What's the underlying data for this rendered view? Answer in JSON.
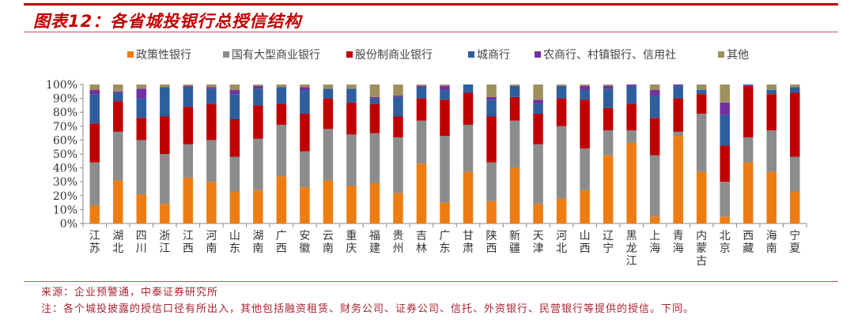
{
  "title": "图表12：各省城投银行总授信结构",
  "footer": {
    "source": "来源：企业预警通，中泰证券研究所",
    "note": "注：各个城投披露的授信口径有所出入，其他包括融资租赁、财务公司、证券公司、信托、外资银行、民营银行等提供的授信。下同。"
  },
  "chart_data": {
    "type": "bar",
    "stacked": true,
    "percent": true,
    "ylim": [
      0,
      100
    ],
    "yticks": [
      "0%",
      "10%",
      "20%",
      "30%",
      "40%",
      "50%",
      "60%",
      "70%",
      "80%",
      "90%",
      "100%"
    ],
    "legend_position": "top",
    "grid": false,
    "categories": [
      "江苏",
      "湖北",
      "四川",
      "浙江",
      "江西",
      "河南",
      "山东",
      "湖南",
      "广西",
      "安徽",
      "云南",
      "重庆",
      "福建",
      "贵州",
      "吉林",
      "广东",
      "甘肃",
      "陕西",
      "新疆",
      "天津",
      "河北",
      "山西",
      "辽宁",
      "黑龙江",
      "上海",
      "青海",
      "内蒙古",
      "北京",
      "西藏",
      "海南",
      "宁夏"
    ],
    "series": [
      {
        "name": "政策性银行",
        "color": "#ED7D12",
        "values": [
          13,
          31,
          21,
          14,
          33,
          30,
          23,
          24,
          34,
          26,
          31,
          27,
          29,
          22,
          43,
          15,
          37,
          16,
          40,
          14,
          18,
          24,
          49,
          58,
          5,
          63,
          37,
          5,
          44,
          37,
          23
        ]
      },
      {
        "name": "国有大型商业银行",
        "color": "#8C8C8C",
        "values": [
          31,
          35,
          39,
          36,
          24,
          30,
          25,
          37,
          37,
          26,
          37,
          37,
          36,
          40,
          31,
          48,
          34,
          28,
          34,
          43,
          52,
          30,
          18,
          9,
          44,
          3,
          42,
          25,
          18,
          30,
          25
        ]
      },
      {
        "name": "股份制商业银行",
        "color": "#C00000",
        "values": [
          28,
          22,
          16,
          27,
          27,
          26,
          27,
          24,
          15,
          27,
          22,
          23,
          21,
          15,
          16,
          26,
          23,
          33,
          17,
          22,
          20,
          35,
          16,
          19,
          27,
          24,
          14,
          26,
          37,
          26,
          46
        ]
      },
      {
        "name": "城商行",
        "color": "#2E5E9E",
        "values": [
          21,
          6,
          14,
          21,
          14,
          11,
          18,
          12,
          12,
          17,
          7,
          10,
          4,
          14,
          8,
          7,
          6,
          12,
          8,
          7,
          9,
          7,
          14,
          13,
          16,
          9,
          3,
          22,
          1,
          3,
          4
        ]
      },
      {
        "name": "农商行、村镇银行、信用社",
        "color": "#7030A0",
        "values": [
          3,
          1,
          7,
          0,
          1,
          1,
          3,
          2,
          0,
          2,
          0,
          0,
          1,
          1,
          1,
          3,
          0,
          2,
          0,
          3,
          0,
          3,
          2,
          1,
          4,
          1,
          0,
          9,
          0,
          0,
          0
        ]
      },
      {
        "name": "其他",
        "color": "#9E8F5E",
        "values": [
          4,
          5,
          3,
          2,
          1,
          2,
          4,
          1,
          2,
          2,
          3,
          3,
          9,
          8,
          1,
          1,
          0,
          9,
          1,
          11,
          1,
          1,
          1,
          0,
          4,
          0,
          4,
          13,
          0,
          4,
          2
        ]
      }
    ]
  }
}
